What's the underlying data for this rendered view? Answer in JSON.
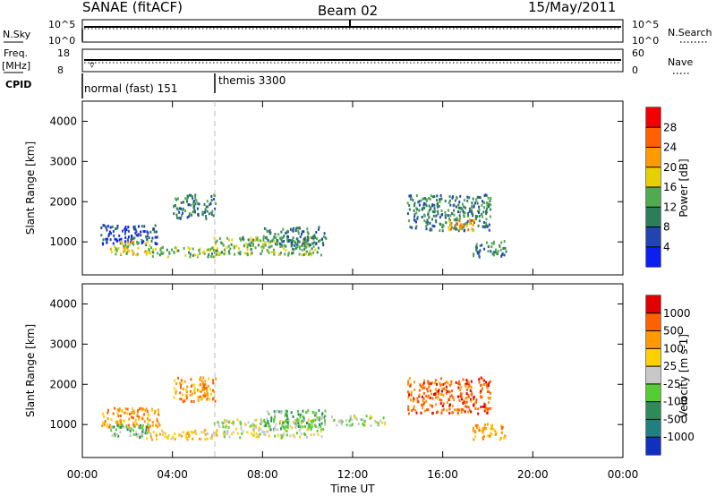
{
  "header": {
    "station": "SANAE (fitACF)",
    "beam": "Beam 02",
    "date": "15/May/2011"
  },
  "strips": {
    "nsky_label": "N.Sky",
    "nsky_ticks": [
      "10^5",
      "10^0"
    ],
    "nsearch_label": "N.Search",
    "nsearch_ticks": [
      "10^5",
      "10^0"
    ],
    "freq_label": "Freq.",
    "freq_unit": "[MHz]",
    "freq_ticks": [
      "18",
      "8"
    ],
    "nave_label": "Nave",
    "nave_ticks": [
      "60",
      "0"
    ],
    "cpid_label": "CPID",
    "cpid_segments": [
      {
        "name": "normal (fast) 151",
        "start_hour": 0
      },
      {
        "name": "themis 3300",
        "start_hour": 6
      }
    ]
  },
  "chart_data": [
    {
      "type": "heatmap",
      "panel": "power",
      "ylabel": "Slant Range [km]",
      "xlabel": "",
      "xlim": [
        0,
        24
      ],
      "ylim": [
        180,
        4500
      ],
      "y_ticks": [
        "1000",
        "2000",
        "3000",
        "4000"
      ],
      "colorbar": {
        "label": "Power [dB]",
        "ticks": [
          "4",
          "8",
          "12",
          "16",
          "20",
          "24",
          "28"
        ],
        "colors": [
          "#0a1ff0",
          "#2244b0",
          "#2e7d5a",
          "#50aa50",
          "#e8d000",
          "#ff9a00",
          "#ff6000",
          "#f00000"
        ]
      },
      "regions": [
        {
          "x": [
            0.8,
            3.4
          ],
          "y": [
            950,
            1450
          ],
          "level": 1
        },
        {
          "x": [
            1.2,
            3.0
          ],
          "y": [
            700,
            1050
          ],
          "level": 4
        },
        {
          "x": [
            2.8,
            6.0
          ],
          "y": [
            650,
            900
          ],
          "level": 3
        },
        {
          "x": [
            4.0,
            5.9
          ],
          "y": [
            1600,
            2200
          ],
          "level": 2
        },
        {
          "x": [
            5.8,
            10.6
          ],
          "y": [
            700,
            1150
          ],
          "level": 3
        },
        {
          "x": [
            8.0,
            10.8
          ],
          "y": [
            900,
            1400
          ],
          "level": 2
        },
        {
          "x": [
            14.4,
            18.1
          ],
          "y": [
            1300,
            2200
          ],
          "level": 2
        },
        {
          "x": [
            16.2,
            17.5
          ],
          "y": [
            1300,
            1600
          ],
          "level": 5
        },
        {
          "x": [
            17.3,
            18.8
          ],
          "y": [
            650,
            1050
          ],
          "level": 2
        }
      ]
    },
    {
      "type": "heatmap",
      "panel": "velocity",
      "ylabel": "Slant Range [km]",
      "xlabel": "Time UT",
      "xlim": [
        0,
        24
      ],
      "ylim": [
        180,
        4500
      ],
      "x_ticks": [
        "00:00",
        "04:00",
        "08:00",
        "12:00",
        "16:00",
        "20:00",
        "00:00"
      ],
      "y_ticks": [
        "1000",
        "2000",
        "3000",
        "4000"
      ],
      "colorbar": {
        "label": "Velocity [m s-1]",
        "ticks": [
          "1000",
          "500",
          "100",
          "25",
          "-25",
          "-100",
          "-500",
          "-1000"
        ],
        "colors": [
          "#1030c0",
          "#208080",
          "#2e8b57",
          "#55cc33",
          "#c8c8c8",
          "#ffd000",
          "#ff9a00",
          "#ff6000",
          "#e00000"
        ]
      },
      "regions": [
        {
          "x": [
            0.8,
            3.4
          ],
          "y": [
            950,
            1450
          ],
          "level": 6
        },
        {
          "x": [
            1.2,
            3.0
          ],
          "y": [
            700,
            1050
          ],
          "level": 3
        },
        {
          "x": [
            2.8,
            6.0
          ],
          "y": [
            650,
            900
          ],
          "level": 5
        },
        {
          "x": [
            4.0,
            5.9
          ],
          "y": [
            1600,
            2200
          ],
          "level": 6
        },
        {
          "x": [
            5.8,
            10.6
          ],
          "y": [
            700,
            1150
          ],
          "level": 4
        },
        {
          "x": [
            8.0,
            10.8
          ],
          "y": [
            900,
            1400
          ],
          "level": 3
        },
        {
          "x": [
            11.0,
            13.5
          ],
          "y": [
            1000,
            1250
          ],
          "level": 4
        },
        {
          "x": [
            14.4,
            18.1
          ],
          "y": [
            1300,
            2200
          ],
          "level": 7
        },
        {
          "x": [
            17.3,
            18.8
          ],
          "y": [
            650,
            1050
          ],
          "level": 6
        }
      ]
    }
  ]
}
